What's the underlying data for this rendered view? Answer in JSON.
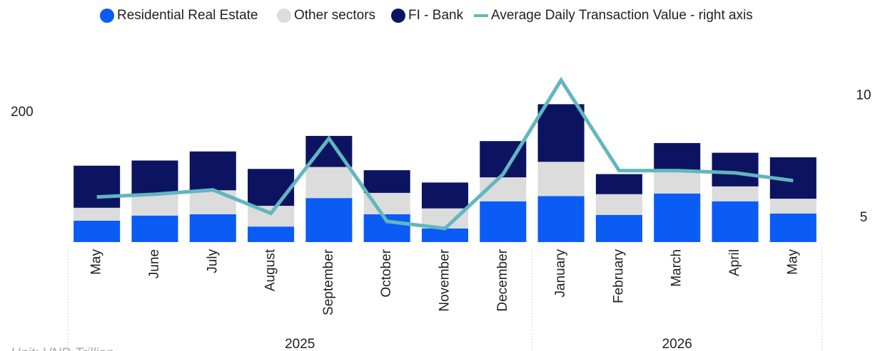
{
  "chart_data": {
    "type": "bar",
    "stacked": true,
    "categories": [
      "May",
      "June",
      "July",
      "August",
      "September",
      "October",
      "November",
      "December",
      "January",
      "February",
      "March",
      "April",
      "May"
    ],
    "groups": [
      {
        "label": "2025",
        "count": 8
      },
      {
        "label": "2026",
        "count": 5
      }
    ],
    "series": [
      {
        "name": "Residential Real Estate",
        "color": "#0a5cf5",
        "values": [
          33,
          41,
          43,
          24,
          68,
          43,
          21,
          63,
          71,
          42,
          75,
          63,
          44
        ]
      },
      {
        "name": "Other sectors",
        "color": "#dcdcdc",
        "values": [
          20,
          33,
          37,
          32,
          48,
          33,
          31,
          37,
          53,
          32,
          33,
          23,
          23
        ]
      },
      {
        "name": "FI - Bank",
        "color": "#0c1461",
        "values": [
          65,
          52,
          60,
          57,
          48,
          35,
          40,
          56,
          89,
          31,
          45,
          52,
          64
        ]
      },
      {
        "name": "Average Daily Transaction Value - right axis",
        "type": "line",
        "axis": "y2",
        "color": "#62b6bf",
        "values": [
          5.85,
          5.96,
          6.14,
          5.18,
          8.25,
          4.85,
          4.56,
          6.78,
          10.64,
          6.93,
          6.93,
          6.84,
          6.52
        ]
      }
    ],
    "ylim": [
      0,
      275
    ],
    "yticks": [
      200
    ],
    "y2lim": [
      4,
      11.3
    ],
    "y2ticks": [
      5,
      10
    ],
    "note": "Unit: VND Trillion",
    "legend": "top"
  }
}
